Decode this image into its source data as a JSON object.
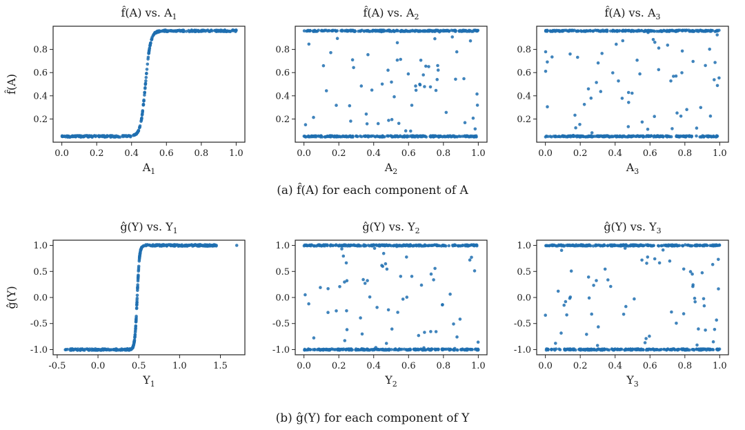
{
  "colors": {
    "points": "#1f6fb0",
    "axes": "#222222",
    "background": "#ffffff"
  },
  "captions": [
    {
      "text": "(a) f̂(A) for each component of A"
    },
    {
      "text": "(b) ĝ(Y) for each component of Y"
    }
  ],
  "chart_data": [
    {
      "type": "scatter",
      "title": {
        "main": "f̂(A) vs. A",
        "sub": "1"
      },
      "xlabel": {
        "main": "A",
        "sub": "1"
      },
      "ylabel": "f̂(A)",
      "xlim": [
        -0.05,
        1.05
      ],
      "ylim": [
        0.0,
        1.0
      ],
      "xticks": [
        "0.0",
        "0.2",
        "0.4",
        "0.6",
        "0.8",
        "1.0"
      ],
      "xtick_values": [
        0,
        0.2,
        0.4,
        0.6,
        0.8,
        1.0
      ],
      "yticks": [
        "0.2",
        "0.4",
        "0.6",
        "0.8"
      ],
      "ytick_values": [
        0.2,
        0.4,
        0.6,
        0.8
      ],
      "pattern": "sigmoid",
      "low": 0.05,
      "high": 0.96,
      "x_center": 0.48,
      "x_range": [
        0.0,
        1.0
      ]
    },
    {
      "type": "scatter",
      "title": {
        "main": "f̂(A) vs. A",
        "sub": "2"
      },
      "xlabel": {
        "main": "A",
        "sub": "2"
      },
      "ylabel": "",
      "xlim": [
        -0.05,
        1.05
      ],
      "ylim": [
        0.0,
        1.0
      ],
      "xticks": [
        "0.0",
        "0.2",
        "0.4",
        "0.6",
        "0.8",
        "1.0"
      ],
      "xtick_values": [
        0,
        0.2,
        0.4,
        0.6,
        0.8,
        1.0
      ],
      "yticks": [
        "0.2",
        "0.4",
        "0.6",
        "0.8"
      ],
      "ytick_values": [
        0.2,
        0.4,
        0.6,
        0.8
      ],
      "pattern": "bands",
      "low": 0.05,
      "high": 0.96,
      "x_range": [
        0.0,
        1.0
      ]
    },
    {
      "type": "scatter",
      "title": {
        "main": "f̂(A) vs. A",
        "sub": "3"
      },
      "xlabel": {
        "main": "A",
        "sub": "3"
      },
      "ylabel": "",
      "xlim": [
        -0.05,
        1.05
      ],
      "ylim": [
        0.0,
        1.0
      ],
      "xticks": [
        "0.0",
        "0.2",
        "0.4",
        "0.6",
        "0.8",
        "1.0"
      ],
      "xtick_values": [
        0,
        0.2,
        0.4,
        0.6,
        0.8,
        1.0
      ],
      "yticks": [
        "0.2",
        "0.4",
        "0.6",
        "0.8"
      ],
      "ytick_values": [
        0.2,
        0.4,
        0.6,
        0.8
      ],
      "pattern": "bands",
      "low": 0.05,
      "high": 0.96,
      "x_range": [
        0.0,
        1.0
      ]
    },
    {
      "type": "scatter",
      "title": {
        "main": "ĝ(Y) vs. Y",
        "sub": "1"
      },
      "xlabel": {
        "main": "Y",
        "sub": "1"
      },
      "ylabel": "ĝ(Y)",
      "xlim": [
        -0.55,
        1.8
      ],
      "ylim": [
        -1.1,
        1.1
      ],
      "xticks": [
        "-0.5",
        "0.0",
        "0.5",
        "1.0",
        "1.5"
      ],
      "xtick_values": [
        -0.5,
        0.0,
        0.5,
        1.0,
        1.5
      ],
      "yticks": [
        "-1.0",
        "-0.5",
        "0.0",
        "0.5",
        "1.0"
      ],
      "ytick_values": [
        -1.0,
        -0.5,
        0.0,
        0.5,
        1.0
      ],
      "pattern": "sigmoid",
      "low": -1.0,
      "high": 1.0,
      "x_center": 0.48,
      "x_range": [
        -0.42,
        1.45
      ],
      "outlier": [
        1.7,
        1.0
      ]
    },
    {
      "type": "scatter",
      "title": {
        "main": "ĝ(Y) vs. Y",
        "sub": "2"
      },
      "xlabel": {
        "main": "Y",
        "sub": "2"
      },
      "ylabel": "",
      "xlim": [
        -0.05,
        1.05
      ],
      "ylim": [
        -1.1,
        1.1
      ],
      "xticks": [
        "0.0",
        "0.2",
        "0.4",
        "0.6",
        "0.8",
        "1.0"
      ],
      "xtick_values": [
        0,
        0.2,
        0.4,
        0.6,
        0.8,
        1.0
      ],
      "yticks": [
        "-1.0",
        "-0.5",
        "0.0",
        "0.5",
        "1.0"
      ],
      "ytick_values": [
        -1.0,
        -0.5,
        0.0,
        0.5,
        1.0
      ],
      "pattern": "bands",
      "low": -1.0,
      "high": 1.0,
      "x_range": [
        0.0,
        1.0
      ]
    },
    {
      "type": "scatter",
      "title": {
        "main": "ĝ(Y) vs. Y",
        "sub": "3"
      },
      "xlabel": {
        "main": "Y",
        "sub": "3"
      },
      "ylabel": "",
      "xlim": [
        -0.05,
        1.05
      ],
      "ylim": [
        -1.1,
        1.1
      ],
      "xticks": [
        "0.0",
        "0.2",
        "0.4",
        "0.6",
        "0.8",
        "1.0"
      ],
      "xtick_values": [
        0,
        0.2,
        0.4,
        0.6,
        0.8,
        1.0
      ],
      "yticks": [
        "-1.0",
        "-0.5",
        "0.0",
        "0.5",
        "1.0"
      ],
      "ytick_values": [
        -1.0,
        -0.5,
        0.0,
        0.5,
        1.0
      ],
      "pattern": "bands",
      "low": -1.0,
      "high": 1.0,
      "x_range": [
        0.0,
        1.0
      ]
    }
  ]
}
